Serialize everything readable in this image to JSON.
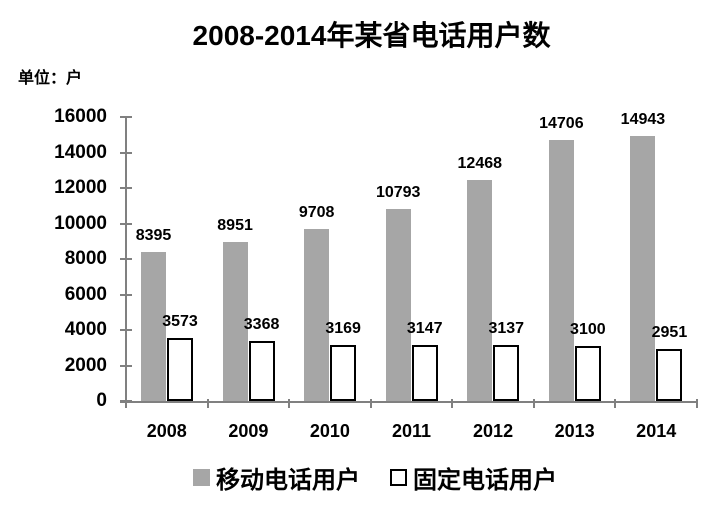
{
  "chart_data": {
    "type": "bar",
    "title": "2008-2014年某省电话用户数",
    "unit_label": "单位：户",
    "categories": [
      "2008",
      "2009",
      "2010",
      "2011",
      "2012",
      "2013",
      "2014"
    ],
    "series": [
      {
        "name": "移动电话用户",
        "values": [
          8395,
          8951,
          9708,
          10793,
          12468,
          14706,
          14943
        ],
        "fill": "#a6a6a6",
        "border": "#a6a6a6"
      },
      {
        "name": "固定电话用户",
        "values": [
          3573,
          3368,
          3169,
          3147,
          3137,
          3100,
          2951
        ],
        "fill": "#ffffff",
        "border": "#000000"
      }
    ],
    "ylim": [
      0,
      16000
    ],
    "yticks": [
      0,
      2000,
      4000,
      6000,
      8000,
      10000,
      12000,
      14000,
      16000
    ],
    "bar_value_labels": true,
    "legend_position": "bottom",
    "grid": false,
    "axis_color": "#808080",
    "text_color": "#000000"
  }
}
